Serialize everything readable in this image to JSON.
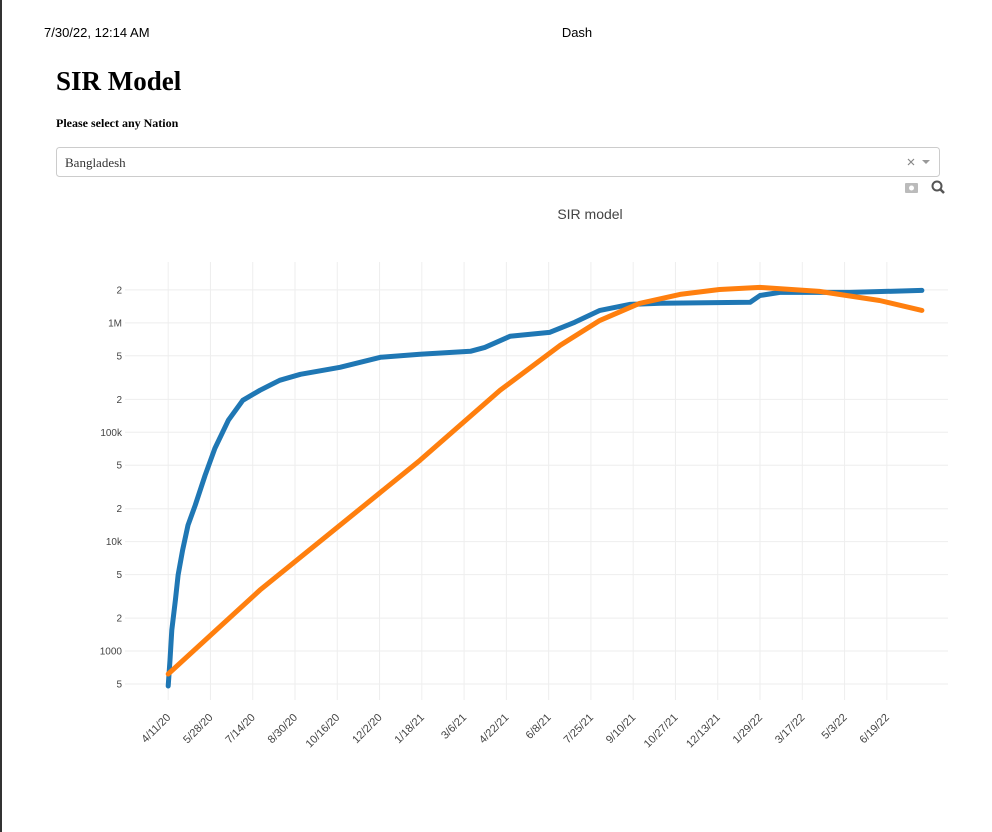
{
  "header": {
    "datetime": "7/30/22, 12:14 AM",
    "app": "Dash"
  },
  "heading": "SIR Model",
  "selector_label": "Please select any Nation",
  "dropdown_value": "Bangladesh",
  "chart_data": {
    "type": "line",
    "title": "SIR model",
    "y_scale": "log",
    "grid": true,
    "xlim": [
      "2020-02-23",
      "2022-08-26"
    ],
    "xticks": [
      {
        "value": "2020-04-11",
        "label": "4/11/20"
      },
      {
        "value": "2020-05-28",
        "label": "5/28/20"
      },
      {
        "value": "2020-07-14",
        "label": "7/14/20"
      },
      {
        "value": "2020-08-30",
        "label": "8/30/20"
      },
      {
        "value": "2020-10-16",
        "label": "10/16/20"
      },
      {
        "value": "2020-12-02",
        "label": "12/2/20"
      },
      {
        "value": "2021-01-18",
        "label": "1/18/21"
      },
      {
        "value": "2021-03-06",
        "label": "3/6/21"
      },
      {
        "value": "2021-04-22",
        "label": "4/22/21"
      },
      {
        "value": "2021-06-08",
        "label": "6/8/21"
      },
      {
        "value": "2021-07-25",
        "label": "7/25/21"
      },
      {
        "value": "2021-09-10",
        "label": "9/10/21"
      },
      {
        "value": "2021-10-27",
        "label": "10/27/21"
      },
      {
        "value": "2021-12-13",
        "label": "12/13/21"
      },
      {
        "value": "2022-01-29",
        "label": "1/29/22"
      },
      {
        "value": "2022-03-17",
        "label": "3/17/22"
      },
      {
        "value": "2022-05-03",
        "label": "5/3/22"
      },
      {
        "value": "2022-06-19",
        "label": "6/19/22"
      }
    ],
    "ylim": [
      357,
      3600000
    ],
    "yticks": [
      {
        "value": 500,
        "label": "5"
      },
      1000,
      {
        "value": 2000,
        "label": "2"
      },
      {
        "value": 5000,
        "label": "5"
      },
      {
        "value": 10000,
        "label": "10k"
      },
      {
        "value": 20000,
        "label": "2"
      },
      {
        "value": 50000,
        "label": "5"
      },
      {
        "value": 100000,
        "label": "100k"
      },
      {
        "value": 200000,
        "label": "2"
      },
      {
        "value": 500000,
        "label": "5"
      },
      {
        "value": 1000000,
        "label": "1M"
      },
      {
        "value": 2000000,
        "label": "2"
      }
    ],
    "series": [
      {
        "color": "#1f77b4",
        "x": [
          "2020-04-11",
          "2020-04-13",
          "2020-04-15",
          "2020-04-19",
          "2020-04-22",
          "2020-04-27",
          "2020-05-03",
          "2020-05-11",
          "2020-05-22",
          "2020-06-02",
          "2020-06-17",
          "2020-07-03",
          "2020-07-22",
          "2020-08-13",
          "2020-09-05",
          "2020-10-19",
          "2020-12-03",
          "2021-01-16",
          "2021-03-13",
          "2021-03-29",
          "2021-04-26",
          "2021-06-09",
          "2021-07-07",
          "2021-08-04",
          "2021-09-06",
          "2021-10-10",
          "2022-01-18",
          "2022-01-29",
          "2022-02-20",
          "2022-05-09",
          "2022-07-28"
        ],
        "values": [
          479,
          828,
          1556,
          2925,
          4945,
          8360,
          14150,
          21500,
          40400,
          71400,
          128800,
          196000,
          242000,
          298600,
          338800,
          392600,
          484000,
          515500,
          549500,
          597000,
          753000,
          818000,
          1011000,
          1300000,
          1475000,
          1510000,
          1540000,
          1780000,
          1900000,
          1900000,
          1980000
        ]
      },
      {
        "color": "#ff7f0e",
        "x": [
          "2020-04-11",
          "2020-07-22",
          "2020-10-19",
          "2021-01-16",
          "2021-04-15",
          "2021-06-21",
          "2021-08-04",
          "2021-09-17",
          "2021-11-01",
          "2021-12-15",
          "2022-01-29",
          "2022-04-05",
          "2022-06-11",
          "2022-07-28"
        ],
        "values": [
          617,
          3606,
          14150,
          55460,
          242000,
          623000,
          1054000,
          1507000,
          1820000,
          2020000,
          2110000,
          1940000,
          1600000,
          1300000
        ]
      }
    ]
  }
}
